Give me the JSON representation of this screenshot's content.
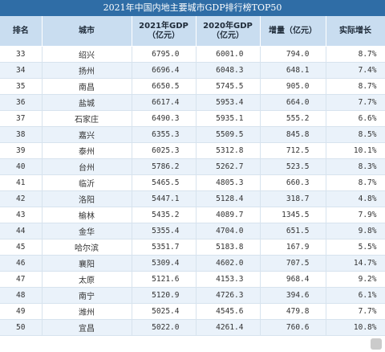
{
  "title": "2021年中国内地主要城市GDP排行榜TOP50",
  "headers": {
    "rank": "排名",
    "city": "城市",
    "gdp2021": "2021年GDP（亿元）",
    "gdp2020": "2020年GDP（亿元）",
    "increase": "增量（亿元）",
    "growth": "实际增长"
  },
  "rows": [
    {
      "rank": "33",
      "city": "绍兴",
      "gdp2021": "6795.0",
      "gdp2020": "6001.0",
      "increase": "794.0",
      "growth": "8.7%"
    },
    {
      "rank": "34",
      "city": "扬州",
      "gdp2021": "6696.4",
      "gdp2020": "6048.3",
      "increase": "648.1",
      "growth": "7.4%"
    },
    {
      "rank": "35",
      "city": "南昌",
      "gdp2021": "6650.5",
      "gdp2020": "5745.5",
      "increase": "905.0",
      "growth": "8.7%"
    },
    {
      "rank": "36",
      "city": "盐城",
      "gdp2021": "6617.4",
      "gdp2020": "5953.4",
      "increase": "664.0",
      "growth": "7.7%"
    },
    {
      "rank": "37",
      "city": "石家庄",
      "gdp2021": "6490.3",
      "gdp2020": "5935.1",
      "increase": "555.2",
      "growth": "6.6%"
    },
    {
      "rank": "38",
      "city": "嘉兴",
      "gdp2021": "6355.3",
      "gdp2020": "5509.5",
      "increase": "845.8",
      "growth": "8.5%"
    },
    {
      "rank": "39",
      "city": "泰州",
      "gdp2021": "6025.3",
      "gdp2020": "5312.8",
      "increase": "712.5",
      "growth": "10.1%"
    },
    {
      "rank": "40",
      "city": "台州",
      "gdp2021": "5786.2",
      "gdp2020": "5262.7",
      "increase": "523.5",
      "growth": "8.3%"
    },
    {
      "rank": "41",
      "city": "临沂",
      "gdp2021": "5465.5",
      "gdp2020": "4805.3",
      "increase": "660.3",
      "growth": "8.7%"
    },
    {
      "rank": "42",
      "city": "洛阳",
      "gdp2021": "5447.1",
      "gdp2020": "5128.4",
      "increase": "318.7",
      "growth": "4.8%"
    },
    {
      "rank": "43",
      "city": "榆林",
      "gdp2021": "5435.2",
      "gdp2020": "4089.7",
      "increase": "1345.5",
      "growth": "7.9%"
    },
    {
      "rank": "44",
      "city": "金华",
      "gdp2021": "5355.4",
      "gdp2020": "4704.0",
      "increase": "651.5",
      "growth": "9.8%"
    },
    {
      "rank": "45",
      "city": "哈尔滨",
      "gdp2021": "5351.7",
      "gdp2020": "5183.8",
      "increase": "167.9",
      "growth": "5.5%"
    },
    {
      "rank": "46",
      "city": "襄阳",
      "gdp2021": "5309.4",
      "gdp2020": "4602.0",
      "increase": "707.5",
      "growth": "14.7%"
    },
    {
      "rank": "47",
      "city": "太原",
      "gdp2021": "5121.6",
      "gdp2020": "4153.3",
      "increase": "968.4",
      "growth": "9.2%"
    },
    {
      "rank": "48",
      "city": "南宁",
      "gdp2021": "5120.9",
      "gdp2020": "4726.3",
      "increase": "394.6",
      "growth": "6.1%"
    },
    {
      "rank": "49",
      "city": "潍州",
      "gdp2021": "5025.4",
      "gdp2020": "4545.6",
      "increase": "479.8",
      "growth": "7.7%"
    },
    {
      "rank": "50",
      "city": "宜昌",
      "gdp2021": "5022.0",
      "gdp2020": "4261.4",
      "increase": "760.6",
      "growth": "10.8%"
    }
  ]
}
